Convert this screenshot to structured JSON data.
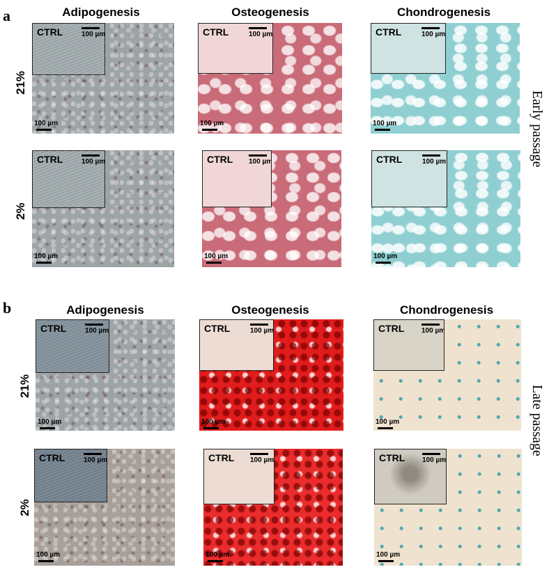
{
  "panels": [
    {
      "letter": "a",
      "side_label": "Early passage",
      "columns": [
        "Adipogenesis",
        "Osteogenesis",
        "Chondrogenesis"
      ],
      "rows": [
        "21%",
        "2%"
      ]
    },
    {
      "letter": "b",
      "side_label": "Late passage",
      "columns": [
        "Adipogenesis",
        "Osteogenesis",
        "Chondrogenesis"
      ],
      "rows": [
        "21%",
        "2%"
      ]
    }
  ],
  "inset_label": "CTRL",
  "scale_label": "100 µm"
}
